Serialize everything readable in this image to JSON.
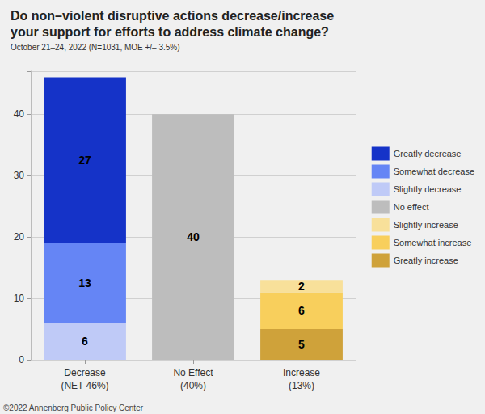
{
  "chart_data": {
    "type": "bar",
    "title": "Do non–violent disruptive actions decrease/increase\nyour support for efforts to address climate change?",
    "subtitle": "October 21–24, 2022 (N=1031, MOE +/– 3.5%)",
    "categories": [
      "Decrease\n(NET 46%)",
      "No Effect\n(40%)",
      "Increase\n(13%)"
    ],
    "series": [
      {
        "name": "Greatly decrease",
        "color": "#1533c8",
        "values": [
          27,
          null,
          null
        ]
      },
      {
        "name": "Somewhat decrease",
        "color": "#6585f5",
        "values": [
          13,
          null,
          null
        ]
      },
      {
        "name": "Slightly decrease",
        "color": "#bfcaf7",
        "values": [
          6,
          null,
          null
        ]
      },
      {
        "name": "No effect",
        "color": "#bdbdbd",
        "values": [
          null,
          40,
          null
        ]
      },
      {
        "name": "Slightly increase",
        "color": "#f8e09a",
        "values": [
          null,
          null,
          2
        ]
      },
      {
        "name": "Somewhat increase",
        "color": "#f8cf5c",
        "values": [
          null,
          null,
          6
        ]
      },
      {
        "name": "Greatly increase",
        "color": "#cfa23a",
        "values": [
          null,
          null,
          5
        ]
      }
    ],
    "ylim": [
      0,
      47
    ],
    "yticks": [
      0,
      10,
      20,
      30,
      40
    ],
    "grid": true,
    "stacked": true,
    "data_labels": true,
    "legend": "right",
    "annotations": [
      "©2022 Annenberg Public Policy Center"
    ]
  }
}
